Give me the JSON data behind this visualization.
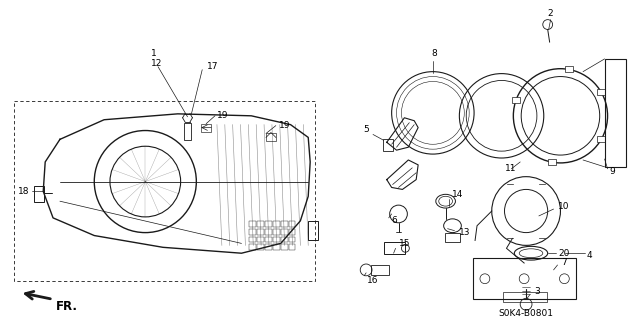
{
  "bg_color": "#ffffff",
  "fig_width": 6.4,
  "fig_height": 3.19,
  "dpi": 100,
  "diagram_code": "S0K4-B0801",
  "fr_label": "FR.",
  "line_color": "#1a1a1a",
  "text_color": "#000000",
  "label_fontsize": 6.5,
  "code_fontsize": 6.5,
  "fr_fontsize": 8.5
}
